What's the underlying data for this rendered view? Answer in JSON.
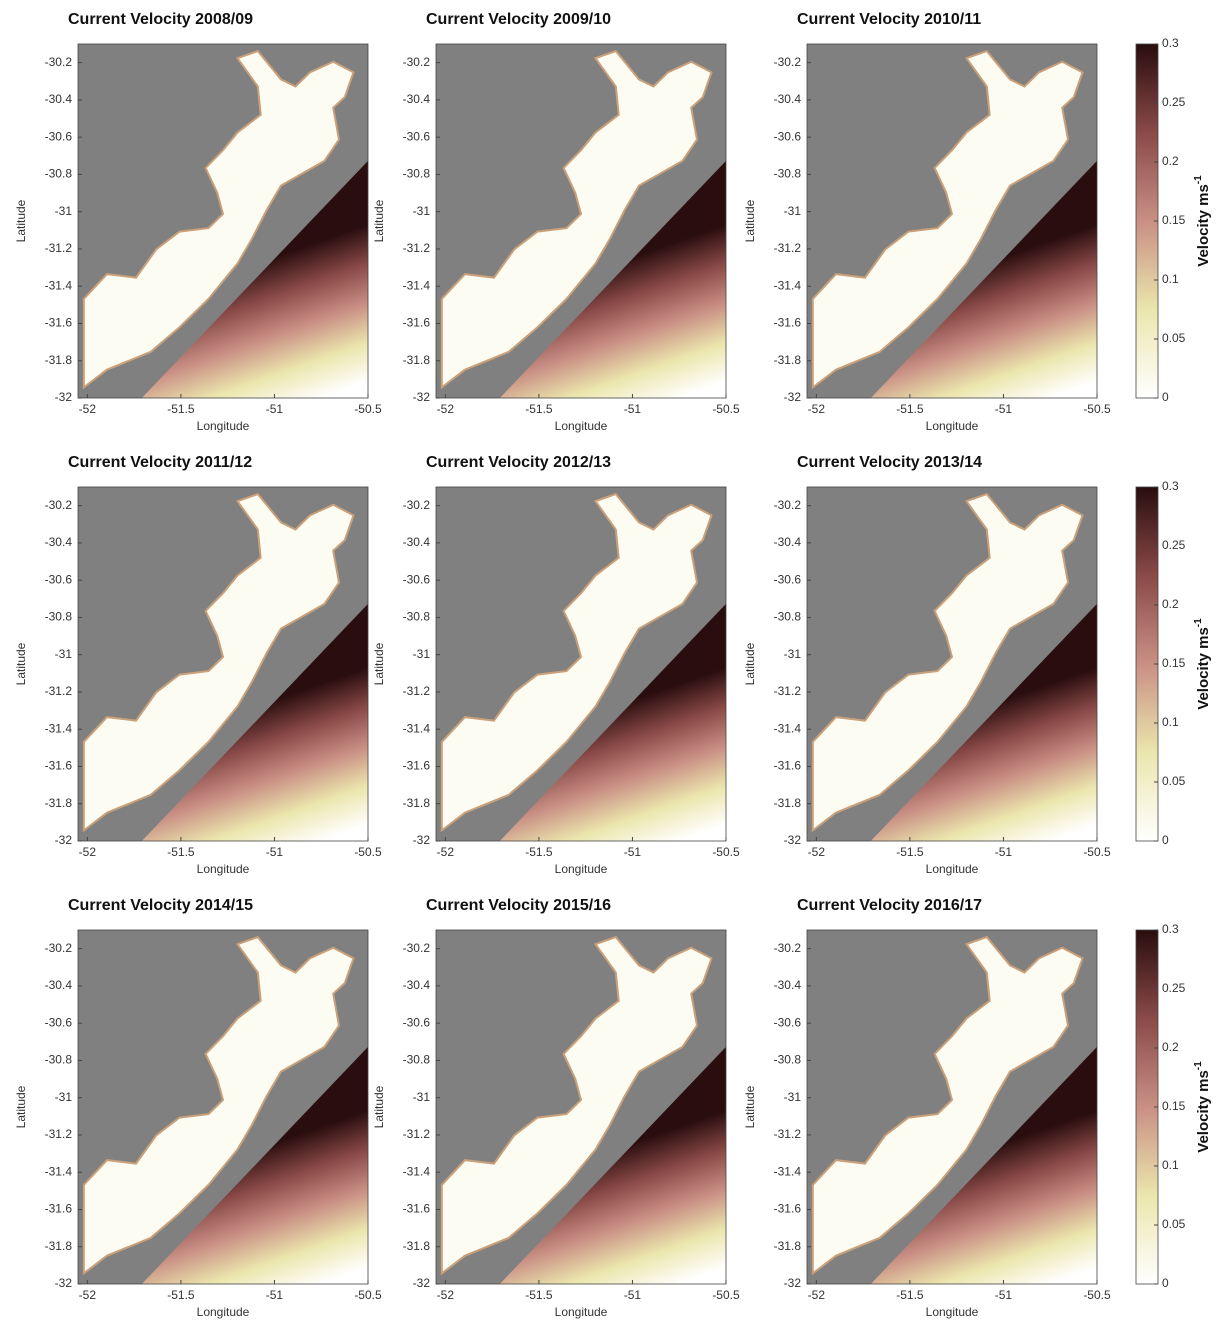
{
  "chart_data": [
    {
      "type": "map",
      "title": "Current Velocity 2008/09",
      "xlabel": "Longitude",
      "ylabel": "Latitude",
      "xlim": [
        -52.05,
        -50.5
      ],
      "ylim": [
        -32,
        -30.1
      ],
      "xticks": [
        -52,
        -51.5,
        -51,
        -50.5
      ],
      "yticks": [
        -30.2,
        -30.4,
        -30.6,
        -30.8,
        -31,
        -31.2,
        -31.4,
        -31.6,
        -31.8,
        -32
      ]
    },
    {
      "type": "map",
      "title": "Current Velocity 2009/10",
      "xlabel": "Longitude",
      "ylabel": "Latitude",
      "xlim": [
        -52.05,
        -50.5
      ],
      "ylim": [
        -32,
        -30.1
      ],
      "xticks": [
        -52,
        -51.5,
        -51,
        -50.5
      ],
      "yticks": [
        -30.2,
        -30.4,
        -30.6,
        -30.8,
        -31,
        -31.2,
        -31.4,
        -31.6,
        -31.8,
        -32
      ]
    },
    {
      "type": "map",
      "title": "Current Velocity 2010/11",
      "xlabel": "Longitude",
      "ylabel": "Latitude",
      "xlim": [
        -52.05,
        -50.5
      ],
      "ylim": [
        -32,
        -30.1
      ],
      "xticks": [
        -52,
        -51.5,
        -51,
        -50.5
      ],
      "yticks": [
        -30.2,
        -30.4,
        -30.6,
        -30.8,
        -31,
        -31.2,
        -31.4,
        -31.6,
        -31.8,
        -32
      ]
    },
    {
      "type": "map",
      "title": "Current Velocity 2011/12",
      "xlabel": "Longitude",
      "ylabel": "Latitude",
      "xlim": [
        -52.05,
        -50.5
      ],
      "ylim": [
        -32,
        -30.1
      ],
      "xticks": [
        -52,
        -51.5,
        -51,
        -50.5
      ],
      "yticks": [
        -30.2,
        -30.4,
        -30.6,
        -30.8,
        -31,
        -31.2,
        -31.4,
        -31.6,
        -31.8,
        -32
      ]
    },
    {
      "type": "map",
      "title": "Current Velocity 2012/13",
      "xlabel": "Longitude",
      "ylabel": "Latitude",
      "xlim": [
        -52.05,
        -50.5
      ],
      "ylim": [
        -32,
        -30.1
      ],
      "xticks": [
        -52,
        -51.5,
        -51,
        -50.5
      ],
      "yticks": [
        -30.2,
        -30.4,
        -30.6,
        -30.8,
        -31,
        -31.2,
        -31.4,
        -31.6,
        -31.8,
        -32
      ]
    },
    {
      "type": "map",
      "title": "Current Velocity 2013/14",
      "xlabel": "Longitude",
      "ylabel": "Latitude",
      "xlim": [
        -52.05,
        -50.5
      ],
      "ylim": [
        -32,
        -30.1
      ],
      "xticks": [
        -52,
        -51.5,
        -51,
        -50.5
      ],
      "yticks": [
        -30.2,
        -30.4,
        -30.6,
        -30.8,
        -31,
        -31.2,
        -31.4,
        -31.6,
        -31.8,
        -32
      ]
    },
    {
      "type": "map",
      "title": "Current Velocity 2014/15",
      "xlabel": "Longitude",
      "ylabel": "Latitude",
      "xlim": [
        -52.05,
        -50.5
      ],
      "ylim": [
        -32,
        -30.1
      ],
      "xticks": [
        -52,
        -51.5,
        -51,
        -50.5
      ],
      "yticks": [
        -30.2,
        -30.4,
        -30.6,
        -30.8,
        -31,
        -31.2,
        -31.4,
        -31.6,
        -31.8,
        -32
      ]
    },
    {
      "type": "map",
      "title": "Current Velocity 2015/16",
      "xlabel": "Longitude",
      "ylabel": "Latitude",
      "xlim": [
        -52.05,
        -50.5
      ],
      "ylim": [
        -32,
        -30.1
      ],
      "xticks": [
        -52,
        -51.5,
        -51,
        -50.5
      ],
      "yticks": [
        -30.2,
        -30.4,
        -30.6,
        -30.8,
        -31,
        -31.2,
        -31.4,
        -31.6,
        -31.8,
        -32
      ]
    },
    {
      "type": "map",
      "title": "Current Velocity 2016/17",
      "xlabel": "Longitude",
      "ylabel": "Latitude",
      "xlim": [
        -52.05,
        -50.5
      ],
      "ylim": [
        -32,
        -30.1
      ],
      "xticks": [
        -52,
        -51.5,
        -51,
        -50.5
      ],
      "yticks": [
        -30.2,
        -30.4,
        -30.6,
        -30.8,
        -31,
        -31.2,
        -31.4,
        -31.6,
        -31.8,
        -32
      ]
    }
  ],
  "colorbars": [
    {
      "label": "Velocity ms",
      "label_superscript": "-1",
      "clim": [
        0,
        0.3
      ],
      "ticks": [
        0,
        0.05,
        0.1,
        0.15,
        0.2,
        0.25,
        0.3
      ],
      "colors": [
        "#ffffff",
        "#ebe6ad",
        "#c98f84",
        "#8a4a48",
        "#2a0d0e"
      ]
    },
    {
      "label": "Velocity ms",
      "label_superscript": "-1",
      "clim": [
        0,
        0.3
      ],
      "ticks": [
        0,
        0.05,
        0.1,
        0.15,
        0.2,
        0.25,
        0.3
      ],
      "colors": [
        "#ffffff",
        "#ebe6ad",
        "#c98f84",
        "#8a4a48",
        "#2a0d0e"
      ]
    },
    {
      "label": "Velocity ms",
      "label_superscript": "-1",
      "clim": [
        0,
        0.3
      ],
      "ticks": [
        0,
        0.05,
        0.1,
        0.15,
        0.2,
        0.25,
        0.3
      ],
      "colors": [
        "#ffffff",
        "#ebe6ad",
        "#c98f84",
        "#8a4a48",
        "#2a0d0e"
      ]
    }
  ]
}
